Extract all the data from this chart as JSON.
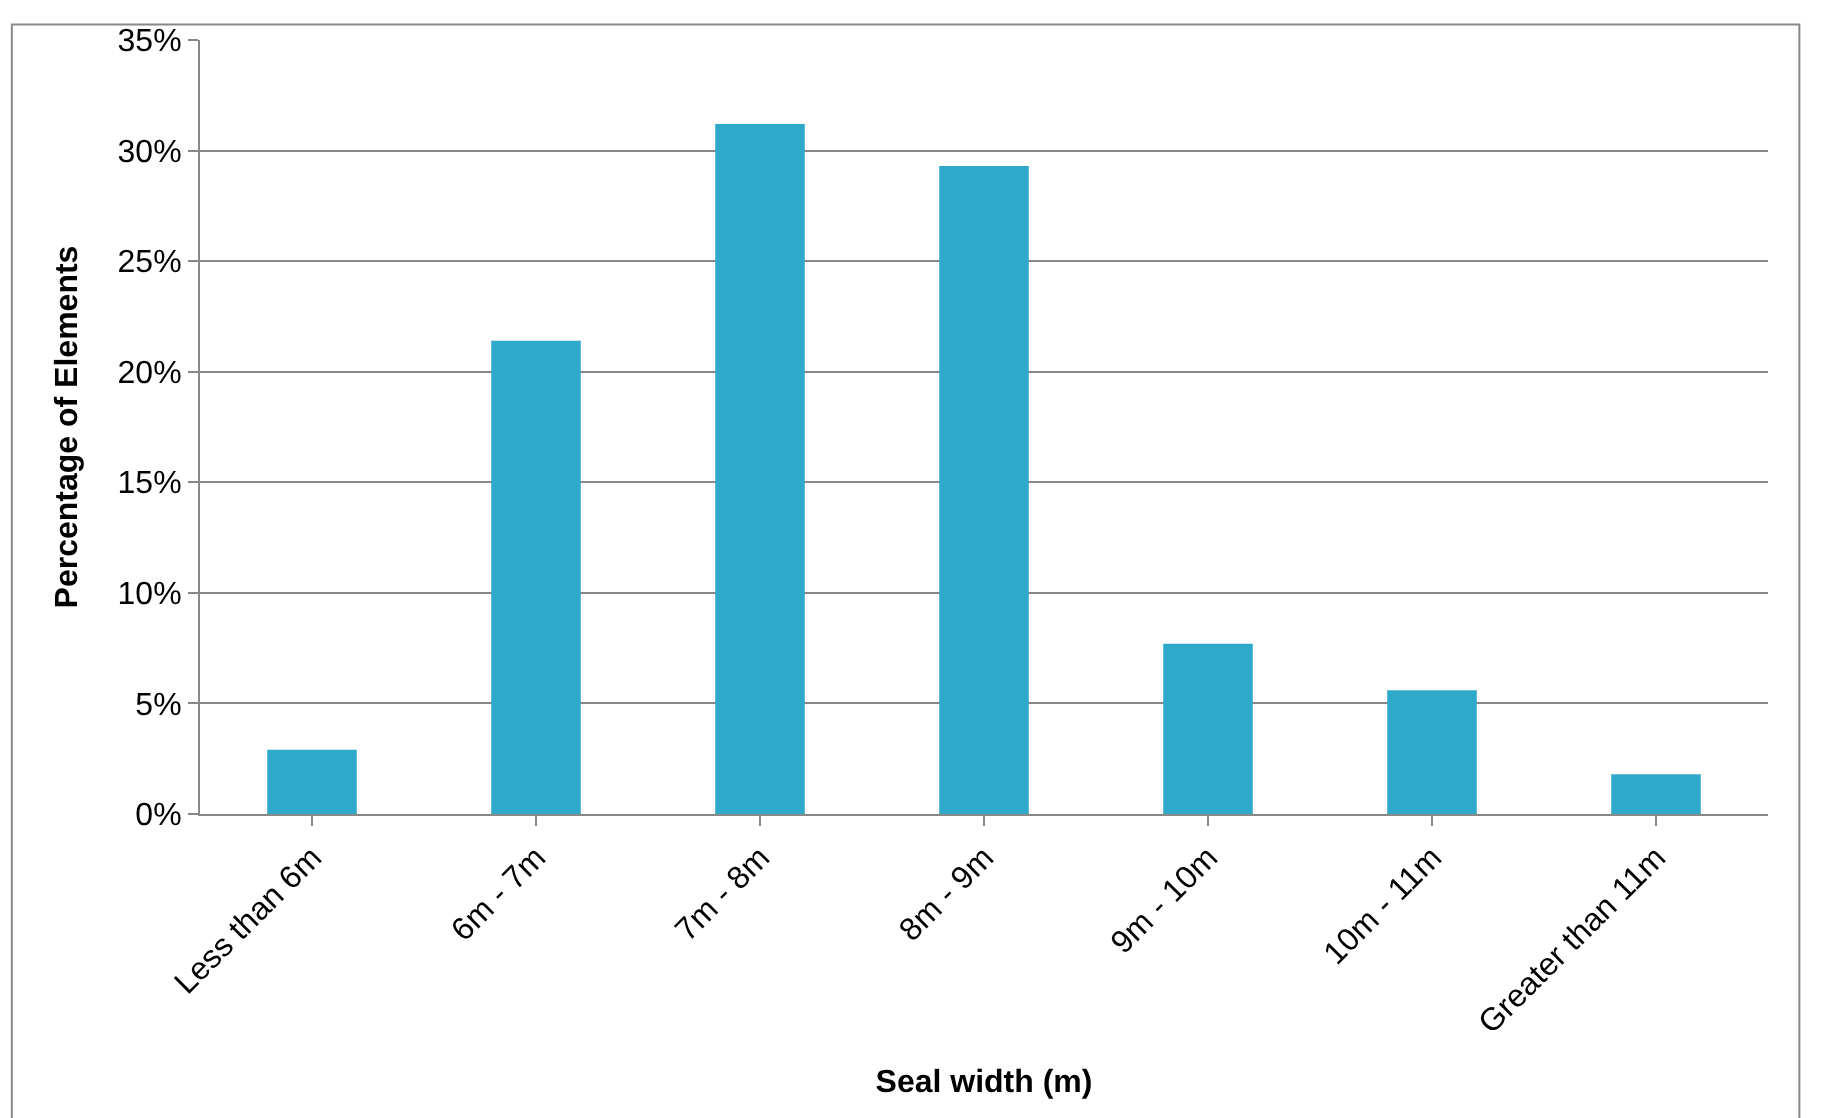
{
  "chart_data": {
    "type": "bar",
    "xlabel": "Seal width (m)",
    "ylabel": "Percentage of Elements",
    "categories": [
      "Less than 6m",
      "6m - 7m",
      "7m - 8m",
      "8m - 9m",
      "9m - 10m",
      "10m - 11m",
      "Greater than 11m"
    ],
    "values": [
      2.9,
      21.4,
      31.2,
      29.3,
      7.7,
      5.6,
      1.8
    ],
    "color": "#2fa9c9",
    "ylim": [
      0,
      35
    ],
    "yticks": [
      {
        "value": 0,
        "label": "0%"
      },
      {
        "value": 5,
        "label": "5%"
      },
      {
        "value": 10,
        "label": "10%"
      },
      {
        "value": 15,
        "label": "15%"
      },
      {
        "value": 20,
        "label": "20%"
      },
      {
        "value": 25,
        "label": "25%"
      },
      {
        "value": 30,
        "label": "30%"
      },
      {
        "value": 35,
        "label": "35%"
      }
    ],
    "grid": "y"
  }
}
